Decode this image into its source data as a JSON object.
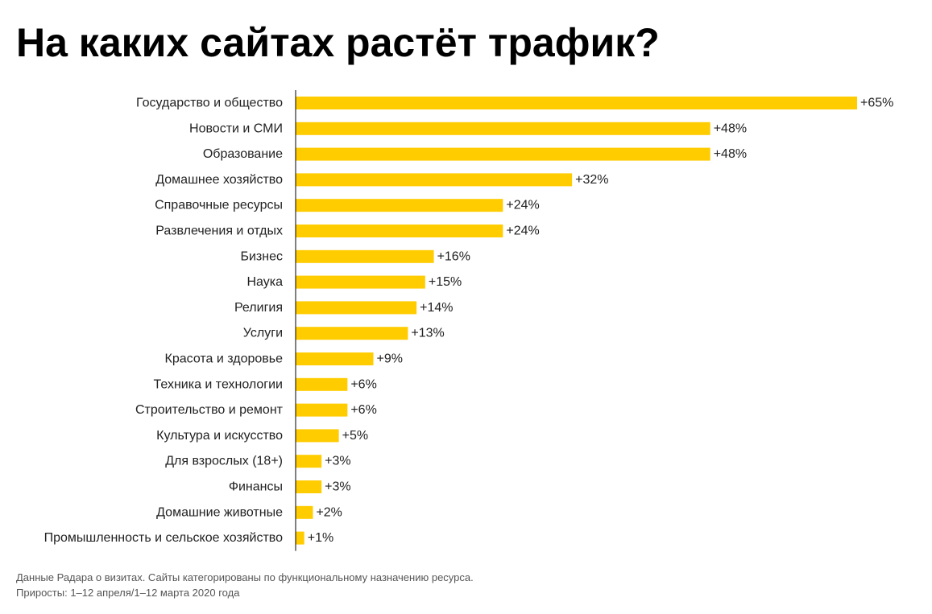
{
  "title": "На каких сайтах растёт трафик?",
  "footnote": {
    "line1": "Данные Радара о визитах. Сайты категорированы по функциональному назначению ресурса.",
    "line2": "Приросты: 1–12 апреля/1–12 марта 2020 года"
  },
  "chart_data": {
    "type": "bar",
    "orientation": "horizontal",
    "categories": [
      "Государство и общество",
      "Новости и СМИ",
      "Образование",
      "Домашнее хозяйство",
      "Справочные ресурсы",
      "Развлечения и отдых",
      "Бизнес",
      "Наука",
      "Религия",
      "Услуги",
      "Красота и здоровье",
      "Техника и технологии",
      "Строительство и ремонт",
      "Культура и искусство",
      "Для взрослых (18+)",
      "Финансы",
      "Домашние животные",
      "Промышленность и сельское хозяйство"
    ],
    "values": [
      65,
      48,
      48,
      32,
      24,
      24,
      16,
      15,
      14,
      13,
      9,
      6,
      6,
      5,
      3,
      3,
      2,
      1
    ],
    "data_labels": [
      "+65%",
      "+48%",
      "+48%",
      "+32%",
      "+24%",
      "+24%",
      "+16%",
      "+15%",
      "+14%",
      "+13%",
      "+9%",
      "+6%",
      "+6%",
      "+5%",
      "+3%",
      "+3%",
      "+2%",
      "+1%"
    ],
    "xlim": [
      0,
      65
    ],
    "grid": false,
    "legend": "none",
    "bar_color": "#FFCC00",
    "axis_color": "#000000"
  }
}
